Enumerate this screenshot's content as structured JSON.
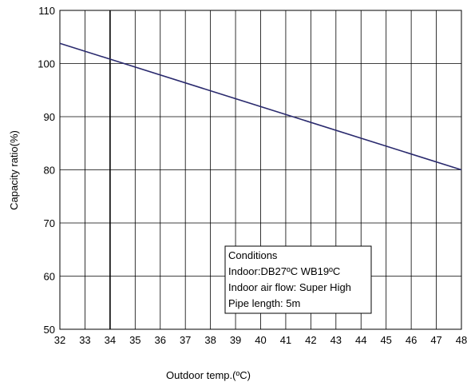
{
  "chart_data": {
    "type": "line",
    "xlabel": "Outdoor temp.(ºC)",
    "ylabel": "Capacity ratio(%)",
    "xlim": [
      32,
      48
    ],
    "ylim": [
      50,
      110
    ],
    "x_ticks": [
      "32",
      "33",
      "34",
      "35",
      "36",
      "37",
      "38",
      "39",
      "40",
      "41",
      "42",
      "43",
      "44",
      "45",
      "46",
      "47",
      "48"
    ],
    "y_ticks": [
      "50",
      "60",
      "70",
      "80",
      "90",
      "100",
      "110"
    ],
    "grid": true,
    "series": [
      {
        "x": [
          32,
          48
        ],
        "y": [
          103.8,
          80
        ],
        "color": "#2a2a6e"
      }
    ],
    "annotation": {
      "lines": [
        "Conditions",
        "Indoor:DB27ºC WB19ºC",
        "Indoor air flow: Super High",
        "Pipe length: 5m"
      ]
    }
  }
}
